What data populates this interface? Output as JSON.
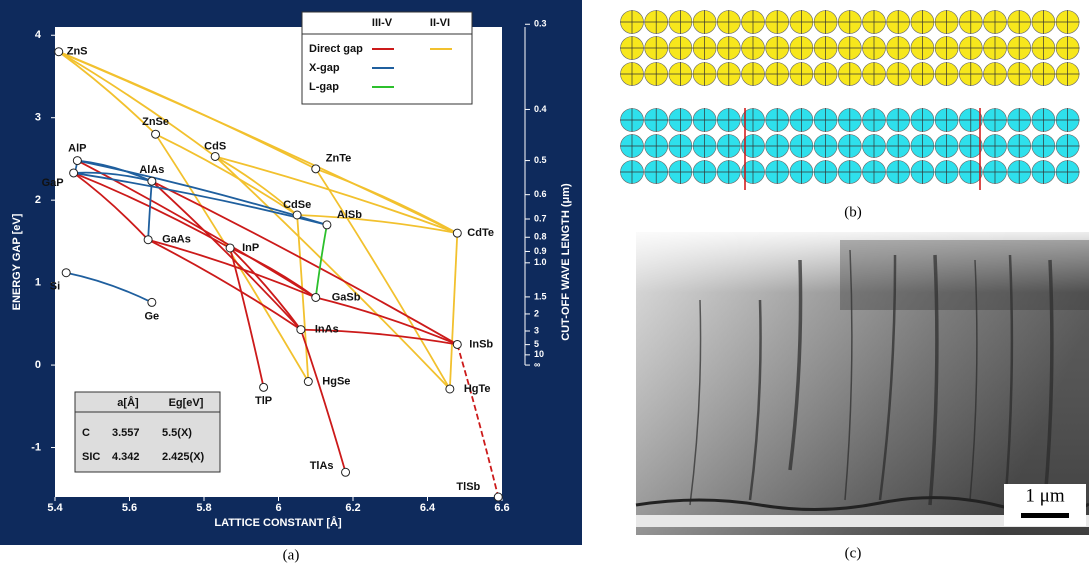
{
  "chart_data": {
    "type": "scatter",
    "x_label": "LATTICE CONSTANT [Å]",
    "y_label": "ENERGY GAP [eV]",
    "y2_label": "CUT-OFF WAVE LENGTH (μm)",
    "xlim": [
      5.4,
      6.6
    ],
    "xticks": [
      5.4,
      5.6,
      5.8,
      6,
      6.2,
      6.4,
      6.6
    ],
    "ylim": [
      -1.6,
      4.1
    ],
    "yticks": [
      -1,
      0,
      1,
      2,
      3,
      4
    ],
    "y2ticks": [
      0.3,
      0.4,
      0.5,
      0.6,
      0.7,
      0.8,
      0.9,
      {
        "value": 1,
        "label": "1.0"
      },
      1.5,
      2,
      3,
      5,
      10,
      {
        "value": null,
        "label": "∞"
      }
    ],
    "labels": [
      "ZnS",
      "ZnSe",
      "CdS",
      "ZnTe",
      "AlP",
      "AlAs",
      "GaP",
      "GaAs",
      "InP",
      "CdSe",
      "AlSb",
      "CdTe",
      "Si",
      "Ge",
      "GaSb",
      "InAs",
      "InSb",
      "TlP",
      "HgSe",
      "HgTe",
      "TlAs",
      "TlSb"
    ],
    "x": [
      5.41,
      5.67,
      5.83,
      6.1,
      5.46,
      5.66,
      5.45,
      5.65,
      5.87,
      6.05,
      6.13,
      6.48,
      5.43,
      5.66,
      6.1,
      6.06,
      6.48,
      5.96,
      6.08,
      6.46,
      6.18,
      6.59
    ],
    "values": [
      3.8,
      2.8,
      2.53,
      2.38,
      2.48,
      2.23,
      2.33,
      1.52,
      1.42,
      1.82,
      1.7,
      1.6,
      1.12,
      0.76,
      0.82,
      0.43,
      0.25,
      -0.27,
      -0.2,
      -0.29,
      -1.3,
      -1.6
    ],
    "legend": {
      "columns": [
        "III-V",
        "II-VI"
      ],
      "rows": [
        {
          "name": "Direct gap",
          "colors": [
            "#cc1a1a",
            "#f2c12e"
          ]
        },
        {
          "name": "X-gap",
          "colors": [
            "#1f5f9e"
          ]
        },
        {
          "name": "L-gap",
          "colors": [
            "#2cc02c"
          ]
        }
      ]
    },
    "table": {
      "header": [
        "a[Å]",
        "Eg[eV]"
      ],
      "rows": [
        [
          "C",
          "3.557",
          "5.5(X)"
        ],
        [
          "SIC",
          "4.342",
          "2.425(X)"
        ]
      ]
    }
  },
  "figure": {
    "captions": [
      "(a)",
      "(b)",
      "(c)"
    ],
    "scale_bar": "1 μm"
  }
}
